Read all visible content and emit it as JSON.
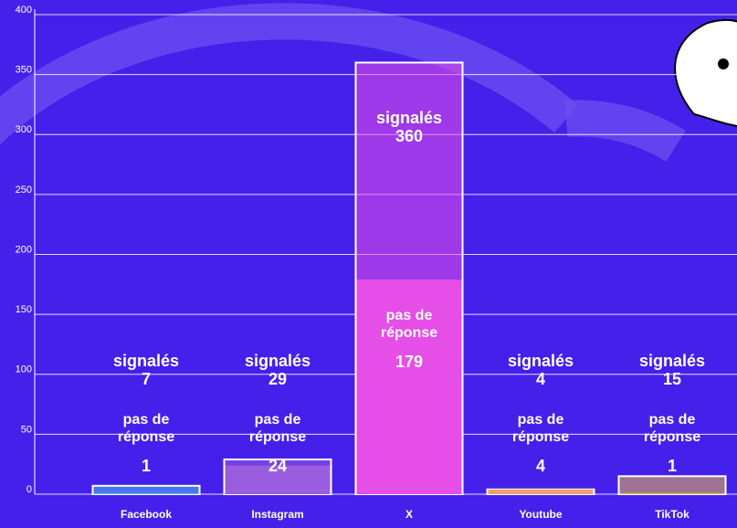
{
  "chart_data": {
    "type": "bar",
    "categories": [
      "Facebook",
      "Instagram",
      "X",
      "Youtube",
      "TikTok"
    ],
    "series": [
      {
        "name": "signalés",
        "values": [
          7,
          29,
          360,
          4,
          15
        ]
      },
      {
        "name": "pas de réponse",
        "values": [
          1,
          24,
          179,
          4,
          1
        ]
      }
    ],
    "colors": [
      "#4fb8f0",
      "#9a5de0",
      "#e64ee8",
      "#f0a070",
      "#e8b84a"
    ],
    "ylim": [
      0,
      400
    ],
    "yticks": [
      0,
      50,
      100,
      150,
      200,
      250,
      300,
      350,
      400
    ],
    "grid": true
  }
}
